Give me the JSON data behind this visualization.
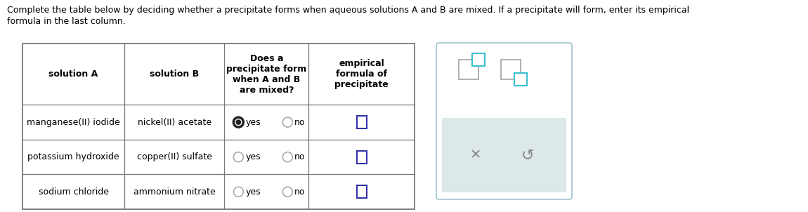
{
  "title_line1": "Complete the table below by deciding whether a precipitate forms when aqueous solutions A and B are mixed. If a precipitate will form, enter its empirical",
  "title_line2": "formula in the last column.",
  "col_headers": [
    "solution A",
    "solution B",
    "Does a\nprecipitate form\nwhen A and B\nare mixed?",
    "empirical\nformula of\nprecipitate"
  ],
  "solution_a": [
    "manganese(II) iodide",
    "potassium hydroxide",
    "sodium chloride"
  ],
  "solution_b": [
    "nickel(II) acetate",
    "copper(II) sulfate",
    "ammonium nitrate"
  ],
  "yes_filled": [
    true,
    false,
    false
  ],
  "background_color": "#ffffff",
  "table_border_color": "#777777",
  "header_font_size": 9,
  "row_font_size": 9,
  "title_font_size": 9,
  "checkbox_color": "#3333aa",
  "radio_filled_color": "#222222",
  "radio_empty_color": "#aaaaaa",
  "widget_border_color": "#a0c4cc",
  "widget_bg": "#ffffff",
  "widget_gray_bg": "#dde8ea",
  "icon_teal": "#3bbfcf",
  "icon_gray": "#aaaaaa"
}
